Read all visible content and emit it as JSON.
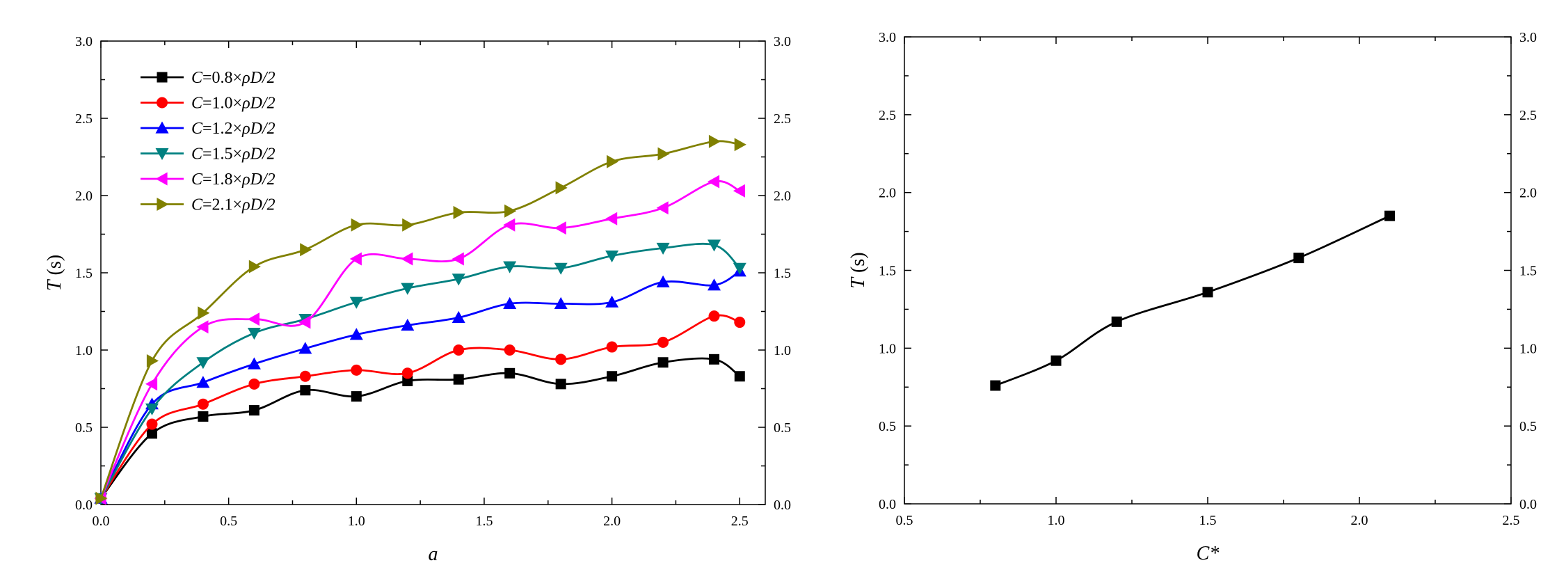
{
  "chart_data": [
    {
      "type": "line",
      "title": "",
      "xlabel": "a",
      "ylabel_italic": "T",
      "ylabel_unit": " (s)",
      "xlim": [
        0,
        2.6
      ],
      "ylim": [
        0,
        3.0
      ],
      "xticks": [
        "0.0",
        "0.5",
        "1.0",
        "1.5",
        "2.0",
        "2.5"
      ],
      "yticks": [
        "0.0",
        "0.5",
        "1.0",
        "1.5",
        "2.0",
        "2.5",
        "3.0"
      ],
      "right_yticks": [
        "0.0",
        "0.5",
        "1.0",
        "1.5",
        "2.0",
        "2.5",
        "3.0"
      ],
      "grid": false,
      "legend_position": "top-left",
      "series": [
        {
          "name_italic": "C",
          "name_rest": "=0.8×",
          "name_italic2": "ρD/2",
          "color": "#000000",
          "marker": "square",
          "x": [
            0.0,
            0.2,
            0.4,
            0.6,
            0.8,
            1.0,
            1.2,
            1.4,
            1.6,
            1.8,
            2.0,
            2.2,
            2.4,
            2.5
          ],
          "y": [
            0.04,
            0.46,
            0.57,
            0.61,
            0.74,
            0.7,
            0.8,
            0.81,
            0.85,
            0.78,
            0.83,
            0.92,
            0.94,
            0.83
          ]
        },
        {
          "name_italic": "C",
          "name_rest": "=1.0×",
          "name_italic2": "ρD/2",
          "color": "#ff0000",
          "marker": "circle",
          "x": [
            0.0,
            0.2,
            0.4,
            0.6,
            0.8,
            1.0,
            1.2,
            1.4,
            1.6,
            1.8,
            2.0,
            2.2,
            2.4,
            2.5
          ],
          "y": [
            0.04,
            0.52,
            0.65,
            0.78,
            0.83,
            0.87,
            0.85,
            1.0,
            1.0,
            0.94,
            1.02,
            1.05,
            1.22,
            1.18
          ]
        },
        {
          "name_italic": "C",
          "name_rest": "=1.2×",
          "name_italic2": "ρD/2",
          "color": "#0000ff",
          "marker": "triangle-up",
          "x": [
            0.0,
            0.2,
            0.4,
            0.6,
            0.8,
            1.0,
            1.2,
            1.4,
            1.6,
            1.8,
            2.0,
            2.2,
            2.4,
            2.5
          ],
          "y": [
            0.04,
            0.65,
            0.79,
            0.91,
            1.01,
            1.1,
            1.16,
            1.21,
            1.3,
            1.3,
            1.31,
            1.44,
            1.42,
            1.51
          ]
        },
        {
          "name_italic": "C",
          "name_rest": "=1.5×",
          "name_italic2": "ρD/2",
          "color": "#008080",
          "marker": "triangle-down",
          "x": [
            0.0,
            0.2,
            0.4,
            0.6,
            0.8,
            1.0,
            1.2,
            1.4,
            1.6,
            1.8,
            2.0,
            2.2,
            2.4,
            2.5
          ],
          "y": [
            0.04,
            0.62,
            0.92,
            1.11,
            1.2,
            1.31,
            1.4,
            1.46,
            1.54,
            1.53,
            1.61,
            1.66,
            1.68,
            1.53
          ]
        },
        {
          "name_italic": "C",
          "name_rest": "=1.8×",
          "name_italic2": "ρD/2",
          "color": "#ff00ff",
          "marker": "triangle-left",
          "x": [
            0.0,
            0.2,
            0.4,
            0.6,
            0.8,
            1.0,
            1.2,
            1.4,
            1.6,
            1.8,
            2.0,
            2.2,
            2.4,
            2.5
          ],
          "y": [
            0.04,
            0.78,
            1.15,
            1.2,
            1.18,
            1.59,
            1.59,
            1.59,
            1.81,
            1.79,
            1.85,
            1.92,
            2.09,
            2.03
          ]
        },
        {
          "name_italic": "C",
          "name_rest": "=2.1×",
          "name_italic2": "ρD/2",
          "color": "#808000",
          "marker": "triangle-right",
          "x": [
            0.0,
            0.2,
            0.4,
            0.6,
            0.8,
            1.0,
            1.2,
            1.4,
            1.6,
            1.8,
            2.0,
            2.2,
            2.4,
            2.5
          ],
          "y": [
            0.04,
            0.93,
            1.24,
            1.54,
            1.65,
            1.81,
            1.81,
            1.89,
            1.9,
            2.05,
            2.22,
            2.27,
            2.35,
            2.33
          ]
        }
      ]
    },
    {
      "type": "line",
      "title": "",
      "xlabel": "C*",
      "ylabel_italic": "T",
      "ylabel_unit": " (s)",
      "xlim": [
        0.5,
        2.5
      ],
      "ylim": [
        0,
        3.0
      ],
      "xticks": [
        "0.5",
        "1.0",
        "1.5",
        "2.0",
        "2.5"
      ],
      "yticks": [
        "0.0",
        "0.5",
        "1.0",
        "1.5",
        "2.0",
        "2.5",
        "3.0"
      ],
      "right_yticks": [
        "0.0",
        "0.5",
        "1.0",
        "1.5",
        "2.0",
        "2.5",
        "3.0"
      ],
      "grid": false,
      "series": [
        {
          "color": "#000000",
          "marker": "square",
          "x": [
            0.8,
            1.0,
            1.2,
            1.5,
            1.8,
            2.1
          ],
          "y": [
            0.76,
            0.92,
            1.17,
            1.36,
            1.58,
            1.85
          ]
        }
      ]
    }
  ]
}
